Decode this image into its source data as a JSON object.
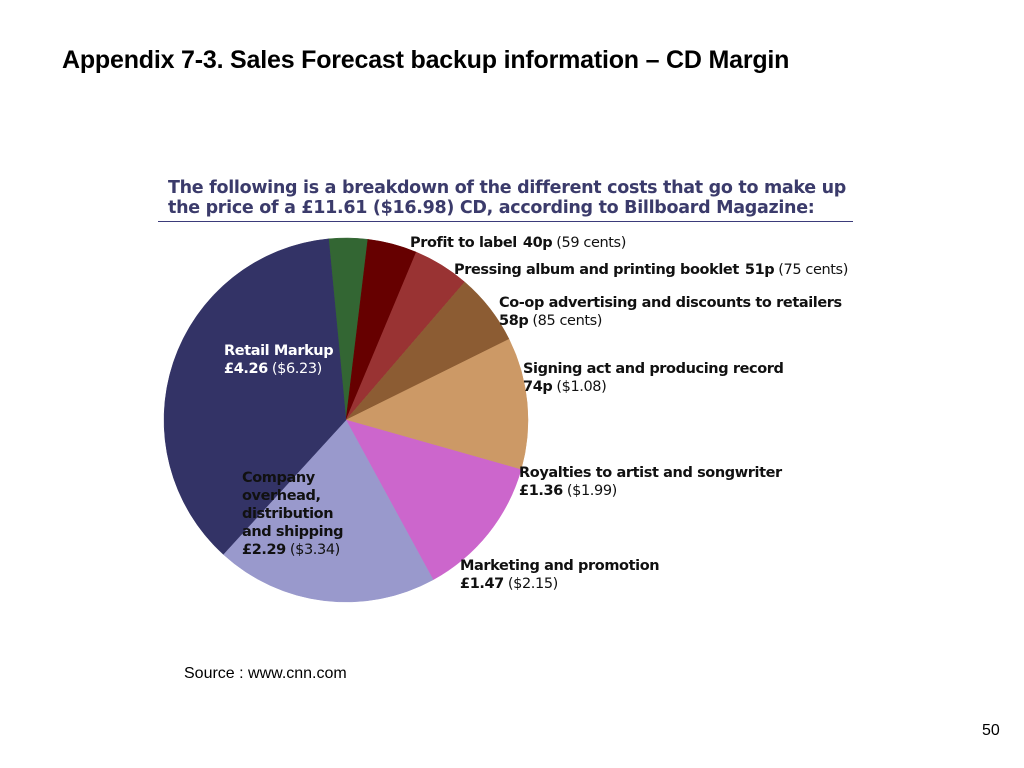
{
  "slide": {
    "title": "Appendix 7-3. Sales Forecast backup information – CD Margin",
    "source": "Source : www.cnn.com",
    "page_number": "50"
  },
  "chart_data": {
    "type": "pie",
    "title_lines": [
      "The following is a breakdown of the different costs that go to make up",
      "the price of a £11.61 ($16.98) CD, according to Billboard Magazine:"
    ],
    "start_angle_deg": 354.5,
    "direction": "clockwise",
    "slices": [
      {
        "name": "Profit to label",
        "gbp": "40p",
        "usd": "(59 cents)",
        "value": 0.4,
        "color": "#336633",
        "label_color": "#111111"
      },
      {
        "name": "Pressing album and printing booklet",
        "gbp": "51p",
        "usd": "(75 cents)",
        "value": 0.51,
        "color": "#660000",
        "label_color": "#111111"
      },
      {
        "name": "Co-op advertising and discounts to retailers",
        "gbp": "58p",
        "usd": "(85 cents)",
        "value": 0.58,
        "color": "#993333",
        "label_color": "#111111"
      },
      {
        "name": "Signing act and producing record",
        "gbp": "74p",
        "usd": "($1.08)",
        "value": 0.74,
        "color": "#8c5c33",
        "label_color": "#111111"
      },
      {
        "name": "Royalties to artist and songwriter",
        "gbp": "£1.36",
        "usd": "($1.99)",
        "value": 1.36,
        "color": "#cc9966",
        "label_color": "#111111"
      },
      {
        "name": "Marketing and promotion",
        "gbp": "£1.47",
        "usd": "($2.15)",
        "value": 1.47,
        "color": "#cc66cc",
        "label_color": "#111111"
      },
      {
        "name": "Company overhead, distribution and shipping",
        "gbp": "£2.29",
        "usd": "($3.34)",
        "value": 2.29,
        "color": "#9999cc",
        "label_color": "#111111"
      },
      {
        "name": "Retail Markup",
        "gbp": "£4.26",
        "usd": "($6.23)",
        "value": 4.26,
        "color": "#333366",
        "label_color": "#ffffff"
      }
    ]
  }
}
